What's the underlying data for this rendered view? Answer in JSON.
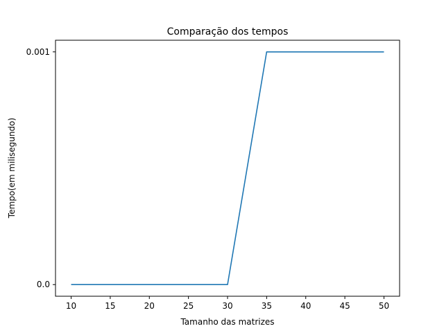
{
  "chart_data": {
    "type": "line",
    "title": "Comparação dos tempos",
    "xlabel": "Tamanho das matrizes",
    "ylabel": "Tempo(em milisegundo)",
    "x": [
      10,
      15,
      20,
      25,
      30,
      35,
      40,
      45,
      50
    ],
    "series": [
      {
        "values": [
          0.0,
          0.0,
          0.0,
          0.0,
          0.0,
          0.001,
          0.001,
          0.001,
          0.001
        ],
        "color": "#1f77b4"
      }
    ],
    "xticks": [
      10,
      15,
      20,
      25,
      30,
      35,
      40,
      45,
      50
    ],
    "xtick_labels": [
      "10",
      "15",
      "20",
      "25",
      "30",
      "35",
      "40",
      "45",
      "50"
    ],
    "yticks": [
      0.0,
      0.001
    ],
    "ytick_labels": [
      "0.0",
      "0.001"
    ],
    "xlim": [
      8,
      52
    ],
    "ylim": [
      -5e-05,
      0.00105
    ],
    "grid": false,
    "legend": null
  }
}
